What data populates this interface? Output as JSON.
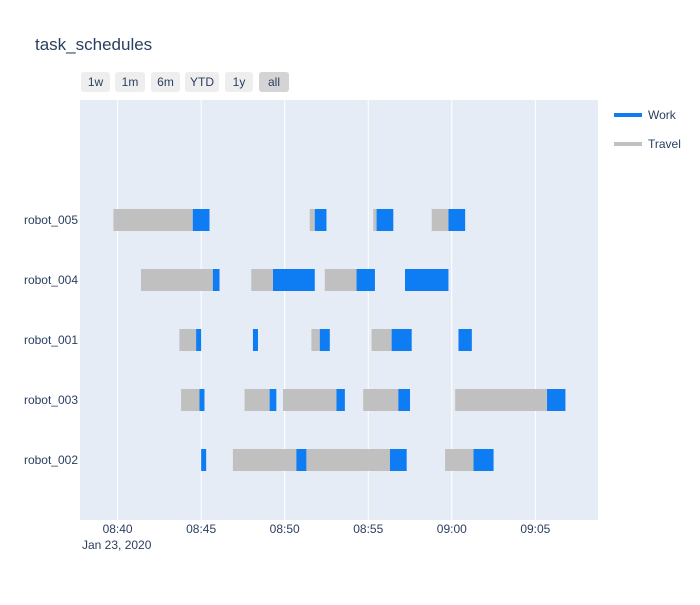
{
  "chart_data": {
    "type": "timeline",
    "title": "task_schedules",
    "range_selector": {
      "buttons": [
        "1w",
        "1m",
        "6m",
        "YTD",
        "1y",
        "all"
      ],
      "active": "all"
    },
    "x_axis": {
      "type": "date",
      "range": [
        "08:37:45",
        "09:08:45"
      ],
      "ticks": [
        "08:40",
        "08:45",
        "08:50",
        "08:55",
        "09:00",
        "09:05"
      ],
      "date_label": "Jan 23, 2020"
    },
    "y_categories": [
      "robot_005",
      "robot_004",
      "robot_001",
      "robot_003",
      "robot_002"
    ],
    "legend": {
      "placement": "top-right",
      "entries": [
        {
          "name": "Work",
          "color": "#0e7cf2"
        },
        {
          "name": "Travel",
          "color": "#c0c0c0"
        }
      ]
    },
    "colors": {
      "Work": "#0e7cf2",
      "Travel": "#c0c0c0",
      "plot_bg": "#e5ecf6"
    },
    "tasks": [
      {
        "robot": "robot_005",
        "type": "Travel",
        "start": "08:39:45",
        "end": "08:44:30"
      },
      {
        "robot": "robot_005",
        "type": "Work",
        "start": "08:44:30",
        "end": "08:45:30"
      },
      {
        "robot": "robot_005",
        "type": "Travel",
        "start": "08:51:30",
        "end": "08:51:48"
      },
      {
        "robot": "robot_005",
        "type": "Work",
        "start": "08:51:48",
        "end": "08:52:30"
      },
      {
        "robot": "robot_005",
        "type": "Travel",
        "start": "08:55:18",
        "end": "08:55:30"
      },
      {
        "robot": "robot_005",
        "type": "Work",
        "start": "08:55:30",
        "end": "08:56:30"
      },
      {
        "robot": "robot_005",
        "type": "Travel",
        "start": "08:58:48",
        "end": "08:59:48"
      },
      {
        "robot": "robot_005",
        "type": "Work",
        "start": "08:59:48",
        "end": "09:00:48"
      },
      {
        "robot": "robot_004",
        "type": "Travel",
        "start": "08:41:24",
        "end": "08:45:42"
      },
      {
        "robot": "robot_004",
        "type": "Work",
        "start": "08:45:42",
        "end": "08:46:06"
      },
      {
        "robot": "robot_004",
        "type": "Travel",
        "start": "08:48:00",
        "end": "08:49:18"
      },
      {
        "robot": "robot_004",
        "type": "Work",
        "start": "08:49:18",
        "end": "08:51:48"
      },
      {
        "robot": "robot_004",
        "type": "Travel",
        "start": "08:52:24",
        "end": "08:54:18"
      },
      {
        "robot": "robot_004",
        "type": "Work",
        "start": "08:54:18",
        "end": "08:55:24"
      },
      {
        "robot": "robot_004",
        "type": "Work",
        "start": "08:57:12",
        "end": "08:59:48"
      },
      {
        "robot": "robot_001",
        "type": "Travel",
        "start": "08:43:42",
        "end": "08:44:42"
      },
      {
        "robot": "robot_001",
        "type": "Work",
        "start": "08:44:42",
        "end": "08:45:00"
      },
      {
        "robot": "robot_001",
        "type": "Work",
        "start": "08:48:06",
        "end": "08:48:24"
      },
      {
        "robot": "robot_001",
        "type": "Travel",
        "start": "08:51:36",
        "end": "08:52:06"
      },
      {
        "robot": "robot_001",
        "type": "Work",
        "start": "08:52:06",
        "end": "08:52:42"
      },
      {
        "robot": "robot_001",
        "type": "Travel",
        "start": "08:55:12",
        "end": "08:56:24"
      },
      {
        "robot": "robot_001",
        "type": "Work",
        "start": "08:56:24",
        "end": "08:57:36"
      },
      {
        "robot": "robot_001",
        "type": "Work",
        "start": "09:00:24",
        "end": "09:01:12"
      },
      {
        "robot": "robot_003",
        "type": "Travel",
        "start": "08:43:48",
        "end": "08:44:54"
      },
      {
        "robot": "robot_003",
        "type": "Work",
        "start": "08:44:54",
        "end": "08:45:12"
      },
      {
        "robot": "robot_003",
        "type": "Travel",
        "start": "08:47:36",
        "end": "08:49:06"
      },
      {
        "robot": "robot_003",
        "type": "Work",
        "start": "08:49:06",
        "end": "08:49:30"
      },
      {
        "robot": "robot_003",
        "type": "Travel",
        "start": "08:49:54",
        "end": "08:53:06"
      },
      {
        "robot": "robot_003",
        "type": "Work",
        "start": "08:53:06",
        "end": "08:53:36"
      },
      {
        "robot": "robot_003",
        "type": "Travel",
        "start": "08:54:42",
        "end": "08:56:48"
      },
      {
        "robot": "robot_003",
        "type": "Work",
        "start": "08:56:48",
        "end": "08:57:30"
      },
      {
        "robot": "robot_003",
        "type": "Travel",
        "start": "09:00:12",
        "end": "09:05:42"
      },
      {
        "robot": "robot_003",
        "type": "Work",
        "start": "09:05:42",
        "end": "09:06:48"
      },
      {
        "robot": "robot_002",
        "type": "Work",
        "start": "08:45:00",
        "end": "08:45:18"
      },
      {
        "robot": "robot_002",
        "type": "Travel",
        "start": "08:46:54",
        "end": "08:50:42"
      },
      {
        "robot": "robot_002",
        "type": "Work",
        "start": "08:50:42",
        "end": "08:51:18"
      },
      {
        "robot": "robot_002",
        "type": "Travel",
        "start": "08:51:18",
        "end": "08:56:18"
      },
      {
        "robot": "robot_002",
        "type": "Work",
        "start": "08:56:18",
        "end": "08:57:18"
      },
      {
        "robot": "robot_002",
        "type": "Travel",
        "start": "08:59:36",
        "end": "09:01:18"
      },
      {
        "robot": "robot_002",
        "type": "Work",
        "start": "09:01:18",
        "end": "09:02:30"
      }
    ]
  }
}
